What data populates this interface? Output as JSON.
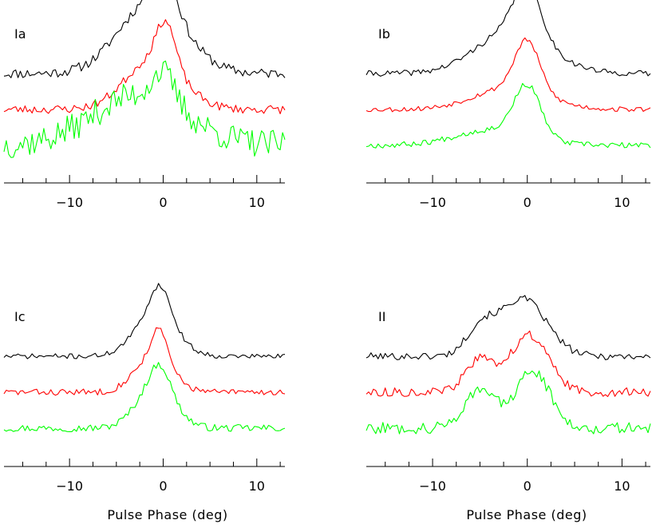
{
  "figure": {
    "x_axis_title": "Pulse Phase (deg)"
  },
  "chart_data": [
    {
      "type": "line",
      "panel_label": "Ia",
      "title": "",
      "xlabel": "",
      "ylabel": "",
      "xlim": [
        -17,
        13
      ],
      "x_ticks": [
        -10,
        0,
        10
      ],
      "grid": false,
      "series": [
        {
          "color": "#000000",
          "baseline": 0,
          "noise": 0.7,
          "components": [
            [
              -1.2,
              3.5,
              10
            ],
            [
              0.2,
              1.2,
              5
            ]
          ],
          "seed": 11
        },
        {
          "color": "#ff0000",
          "baseline": -5,
          "noise": 0.6,
          "components": [
            [
              -1.0,
              3.0,
              7
            ],
            [
              0.3,
              1.0,
              6
            ]
          ],
          "seed": 23
        },
        {
          "color": "#00ff00",
          "baseline": -10,
          "noise": 2.0,
          "components": [
            [
              -2.5,
              5.0,
              7
            ],
            [
              0.0,
              1.2,
              4
            ]
          ],
          "seed": 37
        }
      ]
    },
    {
      "type": "line",
      "panel_label": "Ib",
      "title": "",
      "xlabel": "",
      "ylabel": "",
      "xlim": [
        -17,
        13
      ],
      "x_ticks": [
        -10,
        0,
        10
      ],
      "grid": false,
      "series": [
        {
          "color": "#000000",
          "baseline": 0,
          "noise": 0.4,
          "components": [
            [
              -1.5,
              3.8,
              6
            ],
            [
              0.0,
              1.4,
              7
            ]
          ],
          "seed": 41
        },
        {
          "color": "#ff0000",
          "baseline": -5,
          "noise": 0.35,
          "components": [
            [
              -1.8,
              3.8,
              3
            ],
            [
              0.0,
              1.3,
              7
            ]
          ],
          "seed": 53
        },
        {
          "color": "#00ff00",
          "baseline": -10,
          "noise": 0.4,
          "components": [
            [
              -3.5,
              4.0,
              2.2
            ],
            [
              0.0,
              1.4,
              7
            ]
          ],
          "seed": 67
        }
      ]
    },
    {
      "type": "line",
      "panel_label": "Ic",
      "title": "",
      "xlabel": "",
      "ylabel": "",
      "xlim": [
        -17,
        13
      ],
      "x_ticks": [
        -10,
        0,
        10
      ],
      "grid": false,
      "series": [
        {
          "color": "#000000",
          "baseline": 0,
          "noise": 0.35,
          "components": [
            [
              -0.8,
              2.2,
              6
            ],
            [
              -0.3,
              1.0,
              4
            ]
          ],
          "seed": 71
        },
        {
          "color": "#ff0000",
          "baseline": -5,
          "noise": 0.45,
          "components": [
            [
              -1.0,
              2.0,
              5
            ],
            [
              -0.4,
              0.8,
              4
            ]
          ],
          "seed": 83
        },
        {
          "color": "#00ff00",
          "baseline": -10,
          "noise": 0.5,
          "components": [
            [
              -0.8,
              2.0,
              6
            ],
            [
              -0.3,
              1.0,
              3
            ]
          ],
          "seed": 97
        }
      ]
    },
    {
      "type": "line",
      "panel_label": "II",
      "title": "",
      "xlabel": "",
      "ylabel": "",
      "xlim": [
        -17,
        13
      ],
      "x_ticks": [
        -10,
        0,
        10
      ],
      "grid": false,
      "series": [
        {
          "color": "#000000",
          "baseline": 0,
          "noise": 0.5,
          "components": [
            [
              -5.0,
              1.5,
              3.5
            ],
            [
              -0.5,
              2.5,
              8
            ]
          ],
          "seed": 101
        },
        {
          "color": "#ff0000",
          "baseline": -5,
          "noise": 0.6,
          "components": [
            [
              -5.0,
              1.5,
              4.5
            ],
            [
              0.2,
              2.0,
              8
            ]
          ],
          "seed": 113
        },
        {
          "color": "#00ff00",
          "baseline": -10,
          "noise": 0.8,
          "components": [
            [
              -5.0,
              1.6,
              5.5
            ],
            [
              0.6,
              1.8,
              8
            ]
          ],
          "seed": 127
        }
      ]
    }
  ]
}
